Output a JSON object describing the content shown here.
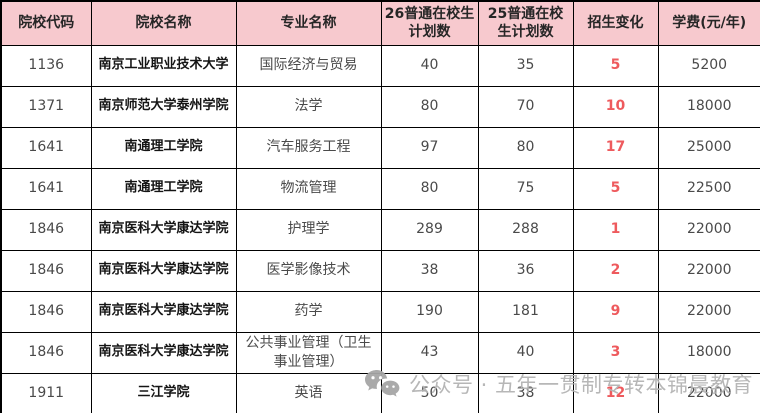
{
  "table": {
    "columns": [
      {
        "key": "code",
        "label": "院校代码"
      },
      {
        "key": "school",
        "label": "院校名称"
      },
      {
        "key": "major",
        "label": "专业名称"
      },
      {
        "key": "plan26",
        "label": "26普通在校生计划数"
      },
      {
        "key": "plan25",
        "label": "25普通在校生计划数"
      },
      {
        "key": "change",
        "label": "招生变化"
      },
      {
        "key": "tuition",
        "label": "学费(元/年)"
      }
    ],
    "rows": [
      {
        "code": "1136",
        "school": "南京工业职业技术大学",
        "major": "国际经济与贸易",
        "plan26": "40",
        "plan25": "35",
        "change": "5",
        "tuition": "5200"
      },
      {
        "code": "1371",
        "school": "南京师范大学泰州学院",
        "major": "法学",
        "plan26": "80",
        "plan25": "70",
        "change": "10",
        "tuition": "18000"
      },
      {
        "code": "1641",
        "school": "南通理工学院",
        "major": "汽车服务工程",
        "plan26": "97",
        "plan25": "80",
        "change": "17",
        "tuition": "25000"
      },
      {
        "code": "1641",
        "school": "南通理工学院",
        "major": "物流管理",
        "plan26": "80",
        "plan25": "75",
        "change": "5",
        "tuition": "22500"
      },
      {
        "code": "1846",
        "school": "南京医科大学康达学院",
        "major": "护理学",
        "plan26": "289",
        "plan25": "288",
        "change": "1",
        "tuition": "22000"
      },
      {
        "code": "1846",
        "school": "南京医科大学康达学院",
        "major": "医学影像技术",
        "plan26": "38",
        "plan25": "36",
        "change": "2",
        "tuition": "22000"
      },
      {
        "code": "1846",
        "school": "南京医科大学康达学院",
        "major": "药学",
        "plan26": "190",
        "plan25": "181",
        "change": "9",
        "tuition": "22000"
      },
      {
        "code": "1846",
        "school": "南京医科大学康达学院",
        "major": "公共事业管理（卫生事业管理）",
        "plan26": "43",
        "plan25": "40",
        "change": "3",
        "tuition": "18000"
      },
      {
        "code": "1911",
        "school": "三江学院",
        "major": "英语",
        "plan26": "50",
        "plan25": "38",
        "change": "12",
        "tuition": "22000"
      }
    ]
  },
  "watermark": {
    "icon": "wechat-icon",
    "text": "公众号 · 五年一贯制专转本锦晨教育"
  },
  "colors": {
    "header_bg": "#f7c9ce",
    "header_text": "#262626",
    "border": "#000000",
    "body_text": "#4a4a4a",
    "school_text": "#141414",
    "change_red": "#ee5a5d",
    "watermark_gray": "#b4b4b4",
    "watermark_icon_gray": "#a6a6a6"
  }
}
